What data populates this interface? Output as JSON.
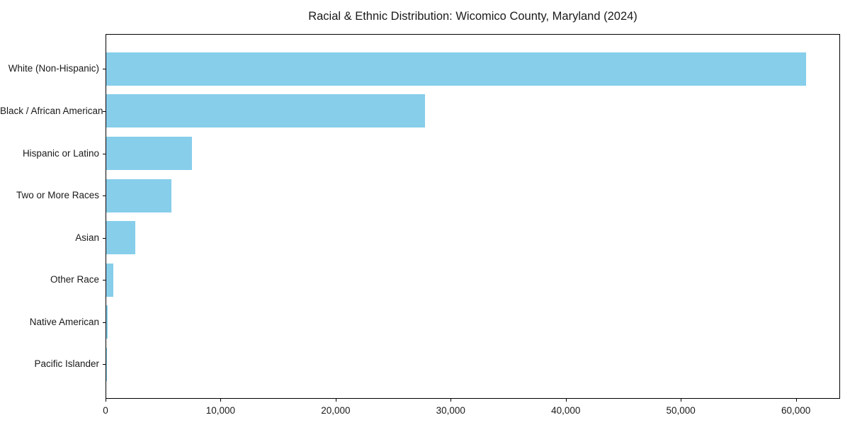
{
  "chart_data": {
    "type": "bar",
    "orientation": "horizontal",
    "title": "Racial & Ethnic Distribution: Wicomico County, Maryland (2024)",
    "xlabel": "",
    "ylabel": "",
    "categories": [
      "White (Non-Hispanic)",
      "Black / African American",
      "Hispanic or Latino",
      "Two or More Races",
      "Asian",
      "Other Race",
      "Native American",
      "Pacific Islander"
    ],
    "values": [
      60800,
      27700,
      7450,
      5650,
      2520,
      620,
      150,
      50
    ],
    "xlim": [
      0,
      63840
    ],
    "xticks": [
      0,
      10000,
      20000,
      30000,
      40000,
      50000,
      60000
    ],
    "xtick_labels": [
      "0",
      "10,000",
      "20,000",
      "30,000",
      "40,000",
      "50,000",
      "60,000"
    ],
    "bar_color": "#87CEEB",
    "grid": false,
    "legend": null,
    "frame": true
  }
}
